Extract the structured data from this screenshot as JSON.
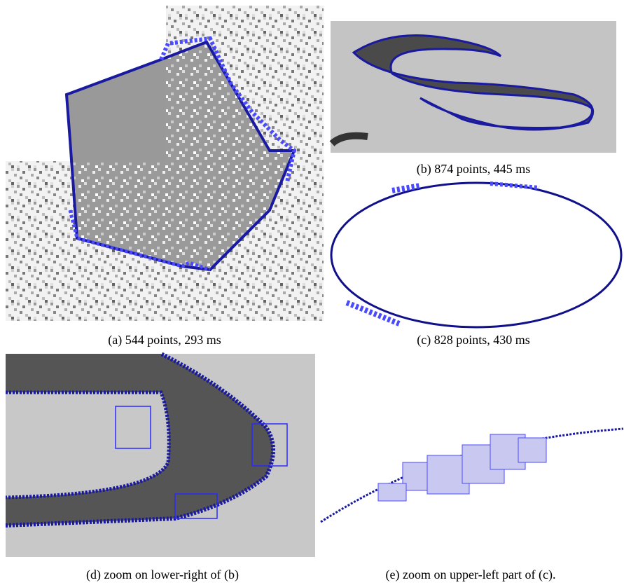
{
  "figure": {
    "panels": [
      {
        "caption": "(a) 544 points, 293 ms"
      },
      {
        "caption": "(b) 874 points, 445 ms"
      },
      {
        "caption": "(c) 828 points, 430 ms"
      },
      {
        "caption": "(d) zoom on lower-right of (b)"
      },
      {
        "caption": "(e) zoom on upper-left part of (c)."
      }
    ]
  }
}
